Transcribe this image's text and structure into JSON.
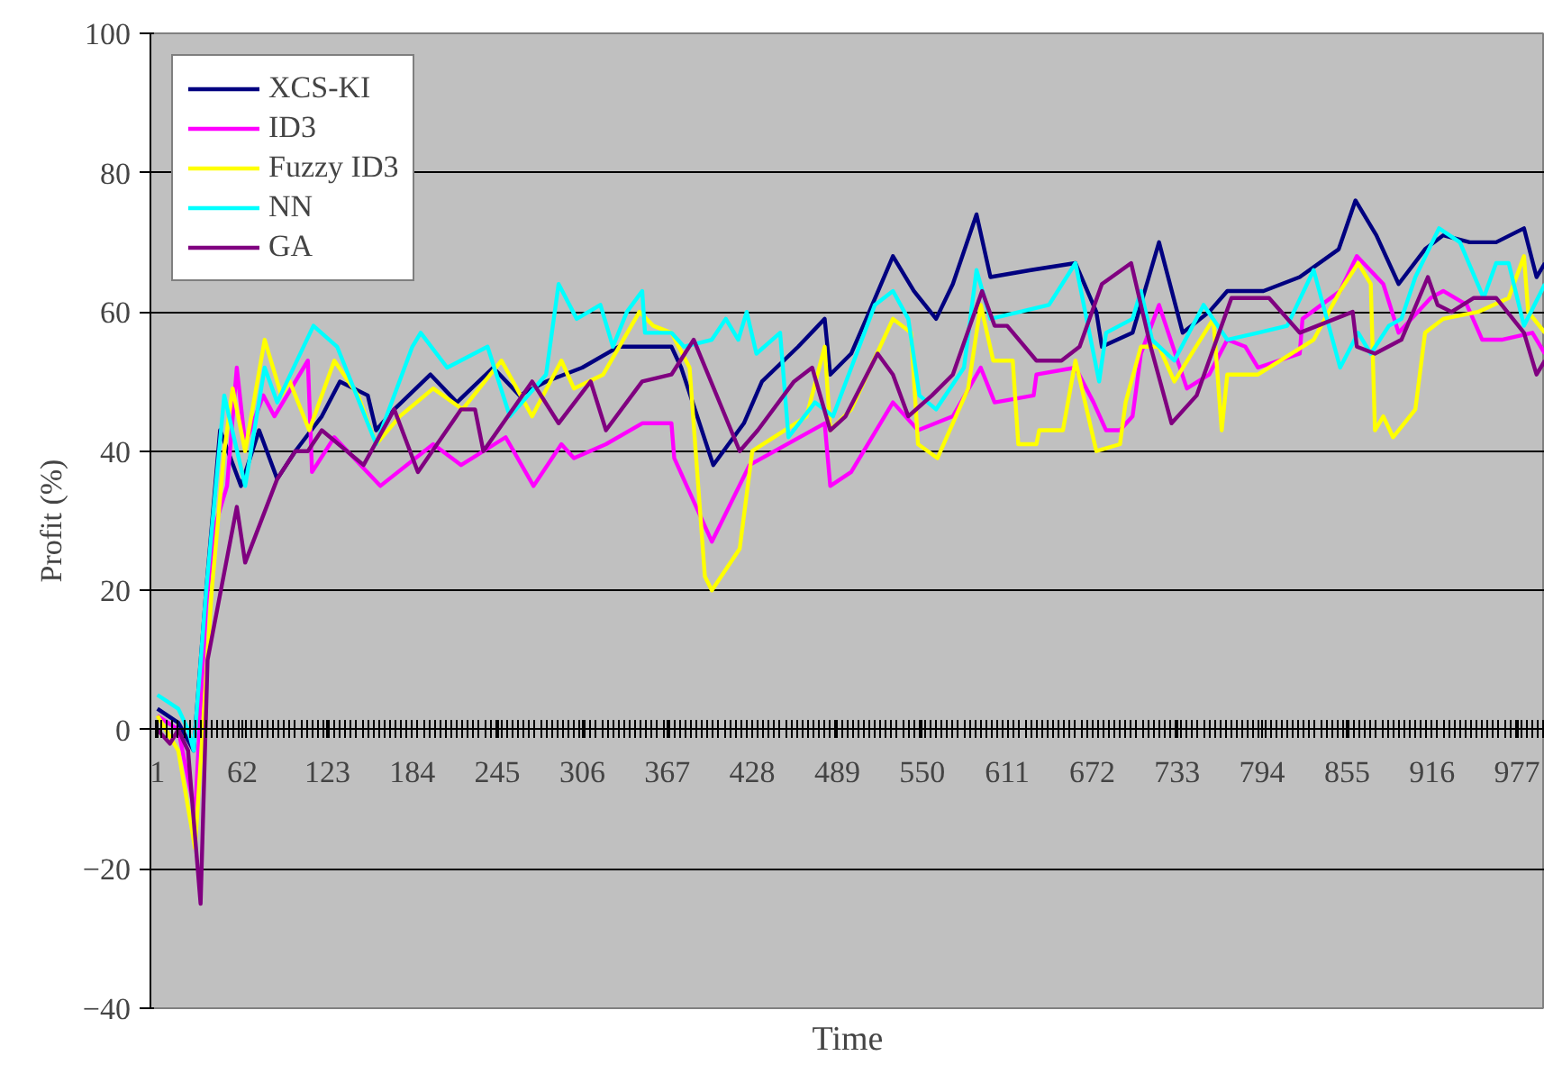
{
  "chart_data": {
    "type": "line",
    "xlabel": "Time",
    "ylabel": "Profit (%)",
    "xlim": [
      -4,
      997
    ],
    "xticks": [
      1,
      62,
      123,
      184,
      245,
      306,
      367,
      428,
      489,
      550,
      611,
      672,
      733,
      794,
      855,
      916,
      977
    ],
    "ylim": [
      -40,
      100
    ],
    "yticks": [
      -40,
      -20,
      0,
      20,
      40,
      60,
      80,
      100
    ],
    "grid": "y",
    "legend": "top left",
    "marker": "none",
    "line_style": "solid",
    "series": [
      {
        "name": "XCS-KI",
        "color": "#000080",
        "x": [
          1,
          16,
          27,
          36,
          46,
          61,
          74,
          87,
          100,
          119,
          132,
          152,
          158,
          171,
          197,
          216,
          242,
          261,
          280,
          306,
          332,
          370,
          377,
          400,
          422,
          435,
          461,
          480,
          484,
          499,
          512,
          529,
          544,
          560,
          572,
          589,
          599,
          628,
          660,
          675,
          679,
          701,
          720,
          737,
          756,
          769,
          795,
          821,
          849,
          861,
          876,
          892,
          911,
          924,
          943,
          962,
          982,
          991,
          997
        ],
        "values": [
          3,
          1,
          -3,
          20,
          43,
          35,
          43,
          36,
          40,
          45,
          50,
          48,
          43,
          46,
          51,
          47,
          52,
          48,
          50,
          52,
          55,
          55,
          52,
          38,
          44,
          50,
          55,
          59,
          51,
          54,
          60,
          68,
          63,
          59,
          64,
          74,
          65,
          66,
          67,
          60,
          55,
          57,
          70,
          57,
          60,
          63,
          63,
          65,
          69,
          76,
          71,
          64,
          69,
          71,
          70,
          70,
          72,
          65,
          67
        ]
      },
      {
        "name": "ID3",
        "color": "#ff00ff",
        "x": [
          1,
          16,
          28,
          36,
          42,
          51,
          58,
          64,
          77,
          85,
          109,
          112,
          128,
          161,
          199,
          219,
          251,
          271,
          291,
          300,
          323,
          349,
          368,
          370,
          372,
          399,
          426,
          480,
          484,
          499,
          529,
          547,
          572,
          592,
          602,
          630,
          632,
          660,
          673,
          682,
          692,
          701,
          707,
          720,
          740,
          756,
          769,
          782,
          791,
          821,
          823,
          850,
          862,
          881,
          892,
          915,
          924,
          941,
          952,
          966,
          988,
          997
        ],
        "values": [
          2,
          0,
          -12,
          18,
          29,
          35,
          52,
          41,
          48,
          45,
          53,
          37,
          42,
          35,
          41,
          38,
          42,
          35,
          41,
          39,
          41,
          44,
          44,
          44,
          39,
          27,
          38,
          44,
          35,
          37,
          47,
          43,
          45,
          52,
          47,
          48,
          51,
          52,
          47,
          43,
          43,
          45,
          54,
          61,
          49,
          51,
          56,
          55,
          52,
          54,
          59,
          63,
          68,
          64,
          57,
          62,
          63,
          61,
          56,
          56,
          57,
          54
        ]
      },
      {
        "name": "Fuzzy ID3",
        "color": "#ffff00",
        "x": [
          1,
          16,
          28,
          40,
          49,
          55,
          64,
          78,
          90,
          96,
          110,
          128,
          145,
          158,
          175,
          199,
          220,
          248,
          270,
          291,
          300,
          321,
          347,
          357,
          370,
          383,
          394,
          399,
          419,
          428,
          467,
          480,
          484,
          499,
          529,
          542,
          547,
          561,
          583,
          592,
          601,
          615,
          619,
          632,
          634,
          651,
          660,
          675,
          692,
          696,
          707,
          720,
          731,
          759,
          765,
          769,
          791,
          831,
          850,
          863,
          872,
          875,
          881,
          888,
          904,
          911,
          924,
          949,
          971,
          982,
          985,
          997
        ],
        "values": [
          2,
          -3,
          -17,
          20,
          40,
          49,
          40,
          56,
          48,
          50,
          43,
          53,
          48,
          41,
          45,
          49,
          46,
          53,
          45,
          53,
          49,
          51,
          60,
          58,
          57,
          52,
          22,
          20,
          26,
          40,
          45,
          55,
          43,
          46,
          59,
          57,
          41,
          39,
          49,
          61,
          53,
          53,
          41,
          41,
          43,
          43,
          53,
          40,
          41,
          47,
          55,
          55,
          50,
          59,
          43,
          51,
          51,
          56,
          63,
          67,
          64,
          43,
          45,
          42,
          46,
          57,
          59,
          60,
          62,
          68,
          60,
          57
        ]
      },
      {
        "name": "NN",
        "color": "#00ffff",
        "x": [
          1,
          16,
          23,
          27,
          36,
          49,
          64,
          78,
          87,
          113,
          130,
          158,
          184,
          190,
          209,
          238,
          254,
          280,
          289,
          302,
          319,
          328,
          338,
          349,
          351,
          370,
          379,
          399,
          409,
          418,
          424,
          431,
          448,
          454,
          473,
          486,
          516,
          529,
          540,
          548,
          560,
          580,
          589,
          599,
          641,
          660,
          677,
          682,
          701,
          707,
          715,
          731,
          752,
          769,
          791,
          812,
          831,
          850,
          863,
          872,
          885,
          894,
          904,
          921,
          936,
          953,
          962,
          971,
          982,
          997
        ],
        "values": [
          5,
          3,
          0,
          -3,
          20,
          48,
          35,
          52,
          47,
          58,
          55,
          41,
          55,
          57,
          52,
          55,
          45,
          51,
          64,
          59,
          61,
          55,
          60,
          63,
          57,
          57,
          55,
          56,
          59,
          56,
          60,
          54,
          57,
          42,
          47,
          45,
          61,
          63,
          59,
          48,
          46,
          52,
          66,
          59,
          61,
          67,
          50,
          57,
          59,
          63,
          56,
          53,
          61,
          56,
          57,
          58,
          66,
          52,
          57,
          54,
          58,
          59,
          65,
          72,
          70,
          62,
          67,
          67,
          58,
          64
        ]
      },
      {
        "name": "GA",
        "color": "#800080",
        "x": [
          1,
          10,
          16,
          23,
          32,
          37,
          58,
          64,
          87,
          100,
          109,
          119,
          149,
          171,
          188,
          219,
          229,
          235,
          270,
          289,
          312,
          323,
          349,
          370,
          386,
          419,
          432,
          458,
          471,
          484,
          495,
          518,
          529,
          540,
          557,
          572,
          593,
          602,
          611,
          632,
          650,
          663,
          679,
          700,
          714,
          729,
          747,
          772,
          799,
          821,
          859,
          862,
          875,
          894,
          913,
          920,
          930,
          946,
          962,
          982,
          991,
          997
        ],
        "values": [
          0,
          -2,
          0,
          -3,
          -25,
          10,
          32,
          24,
          36,
          40,
          40,
          43,
          38,
          46,
          37,
          46,
          46,
          40,
          50,
          44,
          50,
          43,
          50,
          51,
          56,
          40,
          43,
          50,
          52,
          43,
          45,
          54,
          51,
          45,
          48,
          51,
          63,
          58,
          58,
          53,
          53,
          55,
          64,
          67,
          55,
          44,
          48,
          62,
          62,
          57,
          60,
          55,
          54,
          56,
          65,
          61,
          60,
          62,
          62,
          57,
          51,
          53
        ]
      }
    ]
  }
}
